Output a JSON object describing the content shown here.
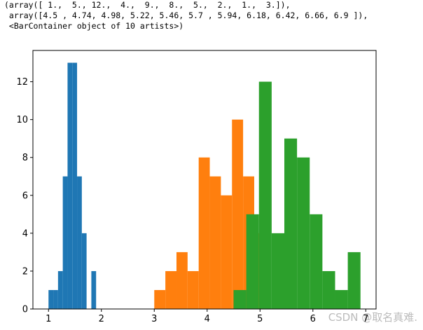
{
  "output": [
    "(array([ 1.,  5., 12.,  4.,  9.,  8.,  5.,  2.,  1.,  3.]),",
    " array([4.5 , 4.74, 4.98, 5.22, 5.46, 5.7 , 5.94, 6.18, 6.42, 6.66, 6.9 ]),",
    " <BarContainer object of 10 artists>)"
  ],
  "watermark": "CSDN @取名真难.",
  "chart_data": {
    "type": "histogram",
    "series": [
      {
        "color": "#1f77b4",
        "bins": [
          1.0,
          1.09,
          1.18,
          1.27,
          1.36,
          1.45,
          1.54,
          1.63,
          1.72,
          1.81,
          1.9
        ],
        "values": [
          1,
          1,
          2,
          7,
          13,
          13,
          7,
          4,
          0,
          2
        ]
      },
      {
        "color": "#ff7f0e",
        "bins": [
          3.0,
          3.21,
          3.42,
          3.63,
          3.84,
          4.05,
          4.26,
          4.47,
          4.68,
          4.89,
          5.1
        ],
        "values": [
          1,
          2,
          3,
          2,
          8,
          7,
          6,
          10,
          7,
          4
        ]
      },
      {
        "color": "#2ca02c",
        "bins": [
          4.5,
          4.74,
          4.98,
          5.22,
          5.46,
          5.7,
          5.94,
          6.18,
          6.42,
          6.66,
          6.9
        ],
        "values": [
          1,
          5,
          12,
          4,
          9,
          8,
          5,
          2,
          1,
          3
        ]
      }
    ],
    "xlim": [
      0.705,
      7.195
    ],
    "xticks": [
      1,
      2,
      3,
      4,
      5,
      6,
      7
    ],
    "ylim": [
      0,
      13.65
    ],
    "yticks": [
      0,
      2,
      4,
      6,
      8,
      10,
      12
    ]
  }
}
